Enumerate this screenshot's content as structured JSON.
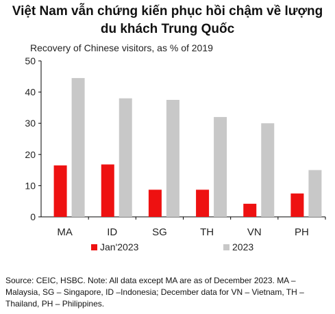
{
  "title_line1": "Việt Nam vẫn chứng kiến phục hồi chậm về lượng",
  "title_line2": "du khách Trung Quốc",
  "chart_data": {
    "type": "bar",
    "title": "Recovery of Chinese  visitors,  as % of 2019",
    "categories": [
      "MA",
      "ID",
      "SG",
      "TH",
      "VN",
      "PH"
    ],
    "series": [
      {
        "name": "Jan'2023",
        "color": "#ee1111",
        "values": [
          16.5,
          16.8,
          8.7,
          8.7,
          4.2,
          7.5
        ]
      },
      {
        "name": "2023",
        "color": "#c8c8c8",
        "values": [
          44.5,
          38.0,
          37.5,
          32.0,
          30.0,
          15.0
        ]
      }
    ],
    "ylim": [
      0,
      50
    ],
    "yticks": [
      0,
      10,
      20,
      30,
      40,
      50
    ],
    "xlabel": "",
    "ylabel": "",
    "grid": false,
    "legend_position": "bottom"
  },
  "source_note": "Source: CEIC, HSBC. Note: All data except MA are as of December 2023. MA – Malaysia, SG – Singapore, ID –Indonesia; December data for VN – Vietnam, TH – Thailand, PH – Philippines."
}
